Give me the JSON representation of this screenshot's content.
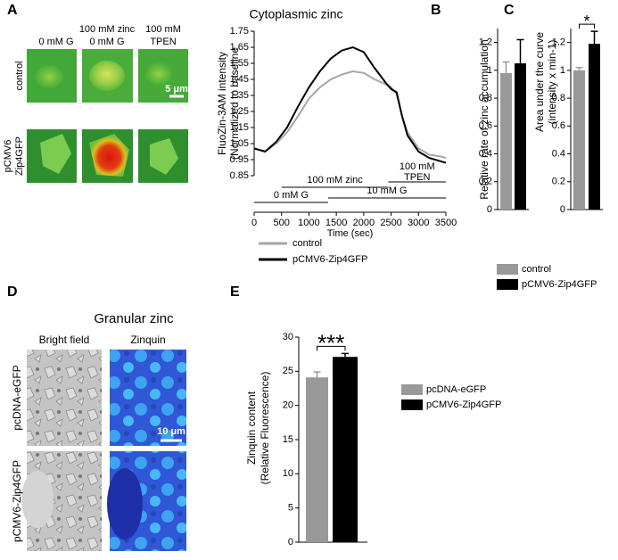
{
  "panel_labels": [
    "A",
    "B",
    "C",
    "D",
    "E"
  ],
  "panel_a_images": {
    "columns": [
      [
        "0 mM G"
      ],
      [
        "100 mM zinc",
        "0 mM G"
      ],
      [
        "100 mM",
        "TPEN"
      ]
    ],
    "rows": [
      [
        "control"
      ],
      [
        "pCMV6",
        "Zip4GFP"
      ]
    ],
    "scale_bar": "5 μm"
  },
  "panel_d_images": {
    "title": "Granular zinc",
    "columns": [
      "Bright field",
      "Zinquin"
    ],
    "rows": [
      "pcDNA-eGFP",
      "pCMV6-Zip4GFP"
    ],
    "scale_bar": "10 μm"
  },
  "chart_data": [
    {
      "type": "line",
      "title": "Cytoplasmic zinc",
      "xlabel": "Time (sec)",
      "ylabel": [
        "FluoZin-3AM intensity",
        "(Normalized to baseline"
      ],
      "x": [
        0,
        200,
        400,
        600,
        800,
        1000,
        1200,
        1400,
        1600,
        1800,
        2000,
        2200,
        2400,
        2500,
        2600,
        2700,
        2800,
        3000,
        3200,
        3400,
        3500
      ],
      "series": [
        {
          "name": "control",
          "color": "#a6a6a6",
          "values": [
            1.02,
            1.0,
            1.05,
            1.12,
            1.22,
            1.33,
            1.4,
            1.45,
            1.48,
            1.5,
            1.49,
            1.45,
            1.42,
            1.4,
            1.36,
            1.22,
            1.12,
            1.02,
            0.98,
            0.97,
            0.96
          ]
        },
        {
          "name": "pCMV6-Zip4GFP",
          "color": "#000000",
          "values": [
            1.02,
            1.0,
            1.06,
            1.15,
            1.28,
            1.4,
            1.5,
            1.58,
            1.63,
            1.65,
            1.62,
            1.52,
            1.43,
            1.39,
            1.37,
            1.22,
            1.1,
            1.0,
            0.96,
            0.94,
            0.93
          ]
        }
      ],
      "xlim": [
        0,
        3500
      ],
      "xticks": [
        0,
        500,
        1000,
        1500,
        2000,
        2500,
        3000,
        3500
      ],
      "ylim": [
        0.85,
        1.75
      ],
      "yticks": [
        0.85,
        0.95,
        1.05,
        1.15,
        1.25,
        1.35,
        1.45,
        1.55,
        1.65,
        1.75
      ],
      "annotations": [
        {
          "text": [
            "100 mM zinc"
          ],
          "xrange": [
            500,
            2450
          ]
        },
        {
          "text": [
            "100 mM",
            "TPEN"
          ],
          "xrange": [
            2450,
            3500
          ]
        },
        {
          "text": [
            "0 mM G"
          ],
          "xrange": [
            0,
            1350
          ]
        },
        {
          "text": [
            "10 mM G"
          ],
          "xrange": [
            1350,
            3500
          ]
        }
      ]
    },
    {
      "type": "bar",
      "ylabel": [
        "Relative rate of zinc accumulation"
      ],
      "series": [
        {
          "color": "#999999",
          "values": [
            0.98
          ],
          "errors": [
            0.08
          ]
        },
        {
          "color": "#000000",
          "values": [
            1.05
          ],
          "errors": [
            0.17
          ]
        }
      ],
      "ylim": [
        0,
        1.3
      ],
      "yticks": [
        0,
        0.2,
        0.4,
        0.6,
        0.8,
        1,
        1.2
      ]
    },
    {
      "type": "bar",
      "ylabel": [
        "Area under the curve",
        "(intensity x min-1)"
      ],
      "significance": "*",
      "series": [
        {
          "name": "control",
          "color": "#999999",
          "values": [
            1.0
          ],
          "errors": [
            0.02
          ]
        },
        {
          "name": "pCMV6-Zip4GFP",
          "color": "#000000",
          "values": [
            1.19
          ],
          "errors": [
            0.09
          ]
        }
      ],
      "ylim": [
        0,
        1.3
      ],
      "yticks": [
        0,
        0.2,
        0.4,
        0.6,
        0.8,
        1,
        1.2
      ]
    },
    {
      "type": "bar",
      "ylabel": [
        "Zinquin content",
        "(Relative Fluorescence)"
      ],
      "significance": "***",
      "series": [
        {
          "name": "pcDNA-eGFP",
          "color": "#999999",
          "values": [
            24.1
          ],
          "errors": [
            0.8
          ]
        },
        {
          "name": "pCMV6-Zip4GFP",
          "color": "#000000",
          "values": [
            27.1
          ],
          "errors": [
            0.5
          ]
        }
      ],
      "ylim": [
        0,
        30
      ],
      "yticks": [
        0,
        5,
        10,
        15,
        20,
        25,
        30
      ]
    }
  ]
}
